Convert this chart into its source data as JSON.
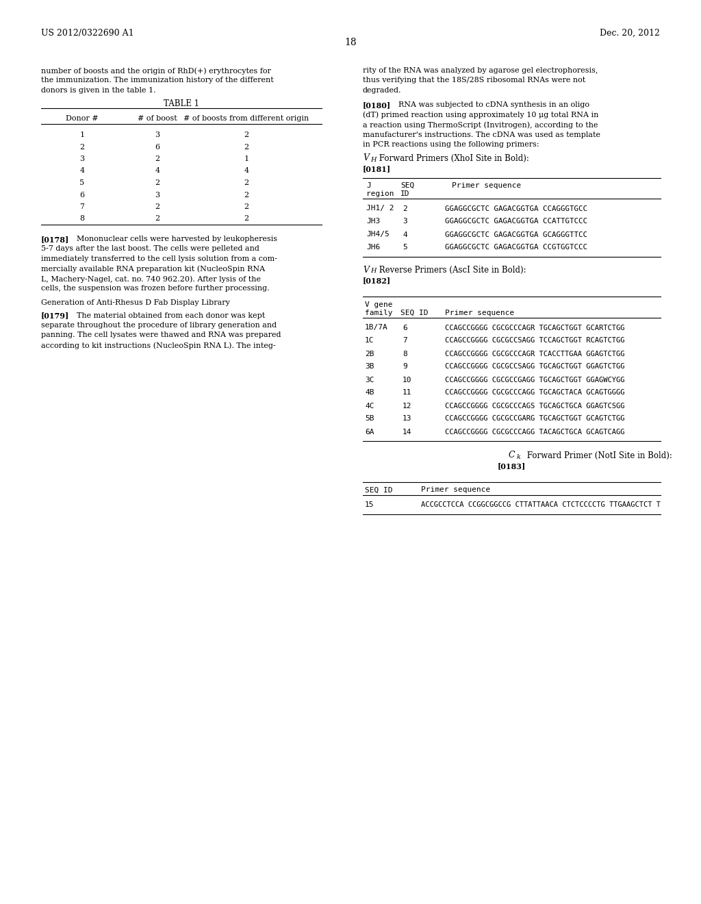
{
  "page_number": "18",
  "patent_number": "US 2012/0322690 A1",
  "patent_date": "Dec. 20, 2012",
  "bg_color": "#ffffff",
  "top_text_left": [
    "number of boosts and the origin of RhD(+) erythrocytes for",
    "the immunization. The immunization history of the different",
    "donors is given in the table 1."
  ],
  "top_text_right": [
    "rity of the RNA was analyzed by agarose gel electrophoresis,",
    "thus verifying that the 18S/28S ribosomal RNAs were not",
    "degraded."
  ],
  "table1_title": "TABLE 1",
  "table1_rows": [
    [
      "1",
      "3",
      "2"
    ],
    [
      "2",
      "6",
      "2"
    ],
    [
      "3",
      "2",
      "1"
    ],
    [
      "4",
      "4",
      "4"
    ],
    [
      "5",
      "2",
      "2"
    ],
    [
      "6",
      "3",
      "2"
    ],
    [
      "7",
      "2",
      "2"
    ],
    [
      "8",
      "2",
      "2"
    ]
  ],
  "para_0178_lines": [
    "[0178]   Mononuclear cells were harvested by leukopheresis",
    "5-7 days after the last boost. The cells were pelleted and",
    "immediately transferred to the cell lysis solution from a com-",
    "mercially available RNA preparation kit (NucleoSpin RNA",
    "L, Machery-Nagel, cat. no. 740 962.20). After lysis of the",
    "cells, the suspension was frozen before further processing."
  ],
  "gen_heading": "Generation of Anti-Rhesus D Fab Display Library",
  "para_0179_lines": [
    "[0179]   The material obtained from each donor was kept",
    "separate throughout the procedure of library generation and",
    "panning. The cell lysates were thawed and RNA was prepared",
    "according to kit instructions (NucleoSpin RNA L). The integ-"
  ],
  "para_0180_lines": [
    "[0180]   RNA was subjected to cDNA synthesis in an oligo",
    "(dT) primed reaction using approximately 10 μg total RNA in",
    "a reaction using ThermoScript (Invitrogen), according to the",
    "manufacturer's instructions. The cDNA was used as template",
    "in PCR reactions using the following primers:"
  ],
  "table2_rows": [
    [
      "JH1/ 2",
      "2",
      "GGAGGCGCTC GAGACGGTGA CCAGGGTGCC"
    ],
    [
      "JH3",
      "3",
      "GGAGGCGCTC GAGACGGTGA CCATTGTCCC"
    ],
    [
      "JH4/5",
      "4",
      "GGAGGCGCTC GAGACGGTGA GCAGGGTTCC"
    ],
    [
      "JH6",
      "5",
      "GGAGGCGCTC GAGACGGTGA CCGTGGTCCC"
    ]
  ],
  "table3_rows": [
    [
      "1B/7A",
      "6",
      "CCAGCCGGGG CGCGCCCAGR TGCAGCTGGT GCARTCTGG"
    ],
    [
      "1C",
      "7",
      "CCAGCCGGGG CGCGCCSAGG TCCAGCTGGT RCAGTCTGG"
    ],
    [
      "2B",
      "8",
      "CCAGCCGGGG CGCGCCCAGR TCACCTTGAA GGAGTCTGG"
    ],
    [
      "3B",
      "9",
      "CCAGCCGGGG CGCGCCSAGG TGCAGCTGGT GGAGTCTGG"
    ],
    [
      "3C",
      "10",
      "CCAGCCGGGG CGCGCCGAGG TGCAGCTGGT GGAGWCYGG"
    ],
    [
      "4B",
      "11",
      "CCAGCCGGGG CGCGCCCAGG TGCAGCTACA GCAGTGGGG"
    ],
    [
      "4C",
      "12",
      "CCAGCCGGGG CGCGCCCAGS TGCAGCTGCA GGAGTCSGG"
    ],
    [
      "5B",
      "13",
      "CCAGCCGGGG CGCGCCGARG TGCAGCTGGT GCAGTCTGG"
    ],
    [
      "6A",
      "14",
      "CCAGCCGGGG CGCGCCCAGG TACAGCTGCA GCAGTCAGG"
    ]
  ],
  "table4_rows": [
    [
      "15",
      "ACCGCCTCCA CCGGCGGCCG CTTATTAACA CTCTCCCCTG TTGAAGCTCT T"
    ]
  ]
}
